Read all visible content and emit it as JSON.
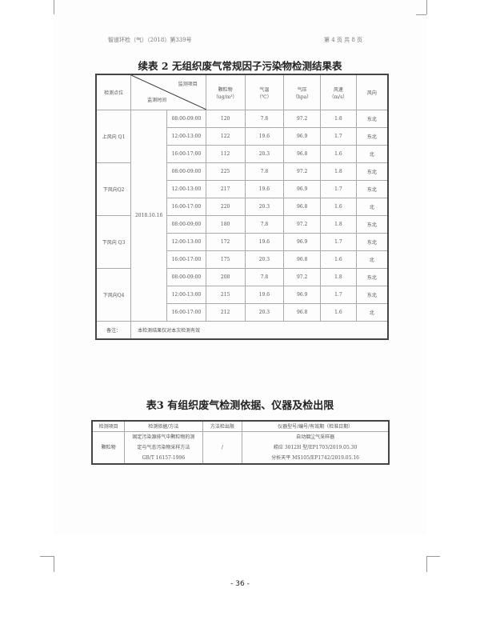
{
  "header": {
    "left": "智道环检（气）（2018）第339号",
    "right": "第 4 页 共 8 页"
  },
  "table1": {
    "title": "续表 2  无组织废气常规因子污染物检测结果表",
    "headers": {
      "point": "检测点位",
      "item": "监测项目",
      "time": "监测时间",
      "pm": "颗粒物",
      "pm_unit": "（ug/m³）",
      "temp": "气温",
      "temp_unit": "（℃）",
      "pressure": "气压",
      "pressure_unit": "（hpa）",
      "speed": "风速",
      "speed_unit": "（m/s）",
      "direction": "风向"
    },
    "date": "2018.10.16",
    "groups": [
      {
        "point": "上风向 Q1",
        "rows": [
          [
            "08:00-09:00",
            "120",
            "7.8",
            "97.2",
            "1.8",
            "东北"
          ],
          [
            "12:00-13:00",
            "122",
            "19.6",
            "96.9",
            "1.7",
            "东北"
          ],
          [
            "16:00-17:00",
            "112",
            "20.3",
            "96.8",
            "1.6",
            "北"
          ]
        ]
      },
      {
        "point": "下风向Q2",
        "rows": [
          [
            "08:00-09:00",
            "225",
            "7.8",
            "97.2",
            "1.8",
            "东北"
          ],
          [
            "12:00-13:00",
            "217",
            "19.6",
            "96.9",
            "1.7",
            "东北"
          ],
          [
            "16:00-17:00",
            "220",
            "20.3",
            "96.8",
            "1.6",
            "北"
          ]
        ]
      },
      {
        "point": "下风向 Q3",
        "rows": [
          [
            "08:00-09:00",
            "180",
            "7.8",
            "97.2",
            "1.8",
            "东北"
          ],
          [
            "12:00-13:00",
            "172",
            "19.6",
            "96.9",
            "1.7",
            "东北"
          ],
          [
            "16:00-17:00",
            "175",
            "20.3",
            "96.8",
            "1.6",
            "北"
          ]
        ]
      },
      {
        "point": "下风向Q4",
        "rows": [
          [
            "08:00-09:00",
            "208",
            "7.8",
            "97.2",
            "1.8",
            "东北"
          ],
          [
            "12:00-13:00",
            "215",
            "19.6",
            "96.9",
            "1.7",
            "东北"
          ],
          [
            "16:00-17:00",
            "212",
            "20.3",
            "96.8",
            "1.6",
            "北"
          ]
        ]
      }
    ],
    "remark_label": "备注：",
    "remark": "本检测结果仅对本次检测有效"
  },
  "table2": {
    "title": "表3  有组织废气检测依据、仪器及检出限",
    "headers": [
      "检测项目",
      "检测依据/方法",
      "方法检出限",
      "仪器型号/编号/有效期（检准日期）"
    ],
    "row": {
      "item": "颗粒物",
      "method": [
        "固定污染源排气中颗粒物的测",
        "定与气态污染物采样方法",
        "GB/T 16157-1996"
      ],
      "limit": "/",
      "instrument": [
        "自动烟尘气采样器",
        "崂应 3012H 型/EP1703/2019.05.30",
        "分析天平 MS105/EP1742/2019.05.16"
      ]
    }
  },
  "footer": {
    "page": "- 36 -"
  }
}
